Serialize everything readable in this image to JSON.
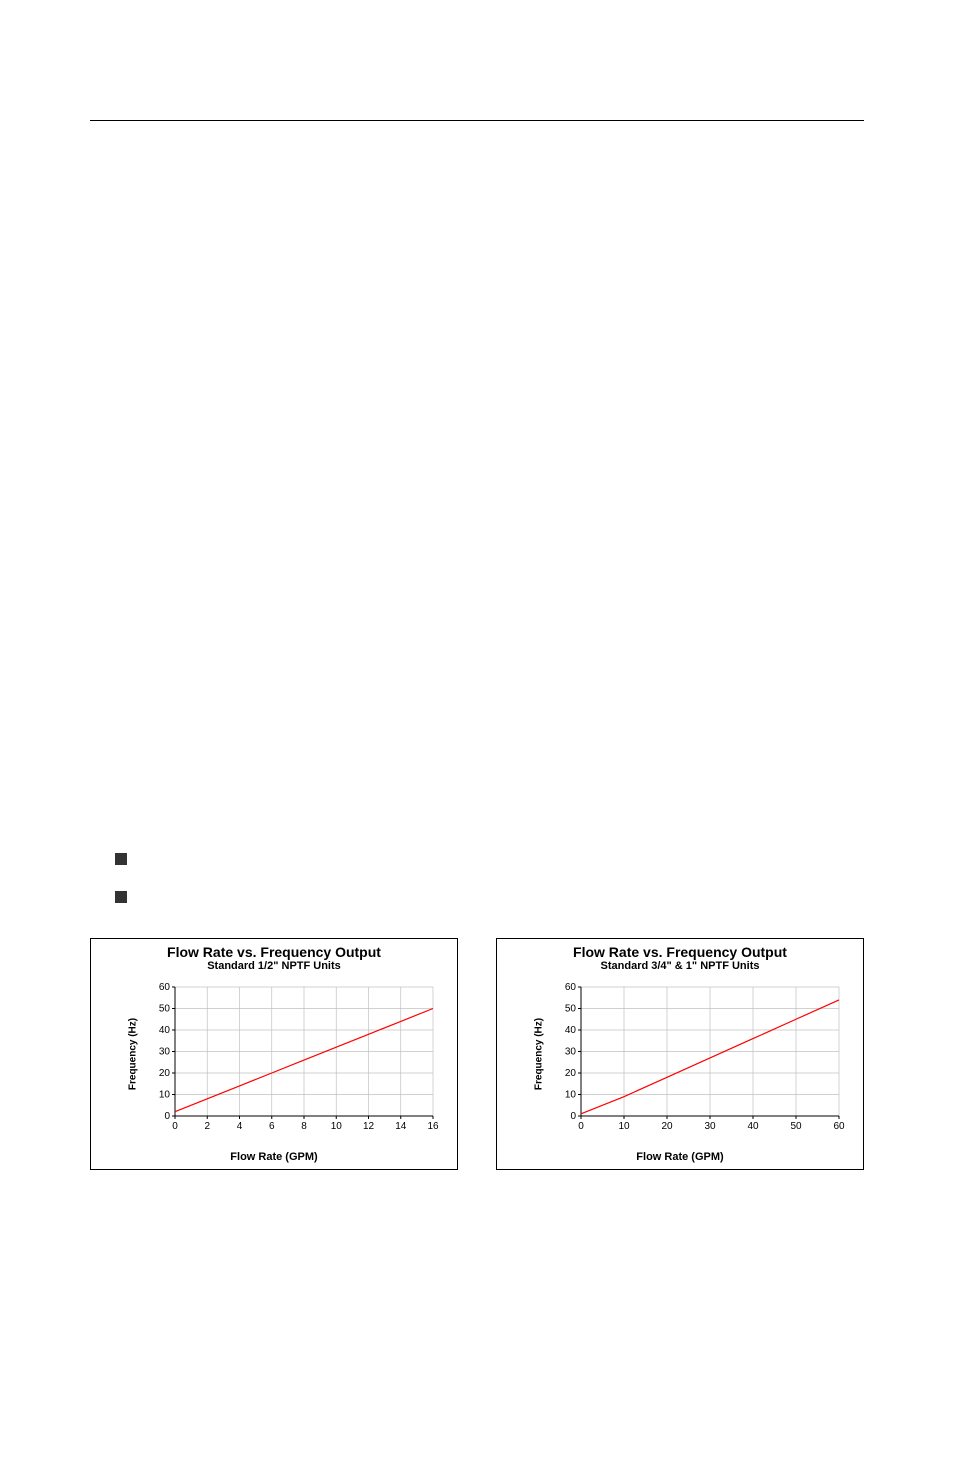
{
  "rule": {
    "present": true
  },
  "bullets": {
    "items": [
      {
        "text": ""
      },
      {
        "text": ""
      }
    ]
  },
  "chart_left": {
    "type": "line",
    "title": "Flow Rate vs. Frequency Output",
    "subtitle": "Standard 1/2\" NPTF Units",
    "ylabel": "Frequency (Hz)",
    "xlabel": "Flow Rate (GPM)",
    "xlim": [
      0,
      16
    ],
    "ylim": [
      0,
      60
    ],
    "xtick_step": 2,
    "ytick_step": 10,
    "xticks": [
      0,
      2,
      4,
      6,
      8,
      10,
      12,
      14,
      16
    ],
    "yticks": [
      0,
      10,
      20,
      30,
      40,
      50,
      60
    ],
    "line_color": "#ff0000",
    "line_width": 1.2,
    "grid_color": "#c0c0c0",
    "axis_color": "#000000",
    "background_color": "#ffffff",
    "tick_fontsize": 10,
    "label_fontsize": 10,
    "title_fontsize": 14,
    "subtitle_fontsize": 11,
    "series": {
      "x": [
        0,
        2,
        4,
        6,
        8,
        10,
        12,
        14,
        16
      ],
      "y": [
        2,
        8,
        14,
        20,
        26,
        32,
        38,
        44,
        50
      ]
    }
  },
  "chart_right": {
    "type": "line",
    "title": "Flow Rate vs. Frequency Output",
    "subtitle": "Standard 3/4\" & 1\" NPTF Units",
    "ylabel": "Frequency (Hz)",
    "xlabel": "Flow Rate (GPM)",
    "xlim": [
      0,
      60
    ],
    "ylim": [
      0,
      60
    ],
    "xtick_step": 10,
    "ytick_step": 10,
    "xticks": [
      0,
      10,
      20,
      30,
      40,
      50,
      60
    ],
    "yticks": [
      0,
      10,
      20,
      30,
      40,
      50,
      60
    ],
    "line_color": "#ff0000",
    "line_width": 1.2,
    "grid_color": "#c0c0c0",
    "axis_color": "#000000",
    "background_color": "#ffffff",
    "tick_fontsize": 10,
    "label_fontsize": 10,
    "title_fontsize": 14,
    "subtitle_fontsize": 11,
    "series": {
      "x": [
        0,
        10,
        20,
        30,
        40,
        50,
        60
      ],
      "y": [
        1,
        9,
        18,
        27,
        36,
        45,
        54
      ]
    }
  }
}
